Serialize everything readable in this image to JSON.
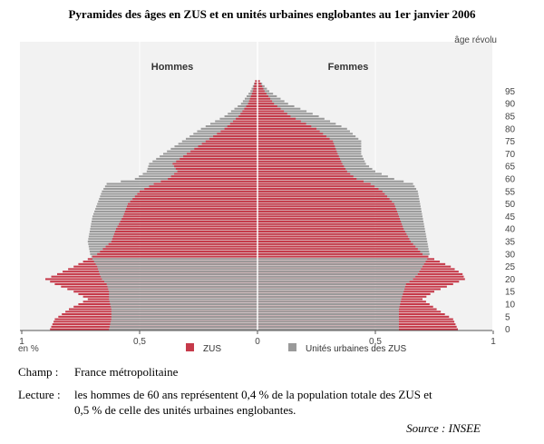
{
  "title": "Pyramides des âges en ZUS et en unités urbaines englobantes au 1er janvier 2006",
  "notes": {
    "champ_label": "Champ :",
    "champ_text": "France métropolitaine",
    "lecture_label": "Lecture :",
    "lecture_line1": "les hommes de 60 ans représentent 0,4 % de la population totale des ZUS et",
    "lecture_line2": "0,5 % de celle des unités urbaines englobantes.",
    "source": "Source : INSEE"
  },
  "colors": {
    "zus": "#c63a4a",
    "uu": "#9a9a9a",
    "background": "#f2f2f2"
  },
  "chart_data": {
    "type": "bar",
    "orientation": "horizontal-pyramid",
    "y_axis_label": "âge révolu",
    "x_unit_label": "en %",
    "left_label": "Hommes",
    "right_label": "Femmes",
    "y_ticks": [
      0,
      5,
      10,
      15,
      20,
      25,
      30,
      35,
      40,
      45,
      50,
      55,
      60,
      65,
      70,
      75,
      80,
      85,
      90,
      95
    ],
    "x_ticks": [
      "1",
      "0,5",
      "0",
      "0,5",
      "1"
    ],
    "xlim": [
      -1,
      1
    ],
    "legend": [
      {
        "name": "ZUS",
        "color": "#c63a4a"
      },
      {
        "name": "Unités urbaines des ZUS",
        "color": "#9a9a9a"
      }
    ],
    "age_keypoints": [
      0,
      4,
      8,
      12,
      15,
      18,
      20,
      22,
      25,
      28,
      30,
      35,
      40,
      45,
      50,
      55,
      58,
      60,
      63,
      66,
      70,
      75,
      80,
      85,
      90,
      95,
      99
    ],
    "series": [
      {
        "name": "ZUS",
        "side": "Hommes",
        "values": [
          0.88,
          0.86,
          0.8,
          0.72,
          0.78,
          0.86,
          0.9,
          0.85,
          0.78,
          0.72,
          0.68,
          0.62,
          0.6,
          0.57,
          0.55,
          0.5,
          0.44,
          0.38,
          0.34,
          0.36,
          0.3,
          0.22,
          0.14,
          0.08,
          0.04,
          0.02,
          0.01
        ]
      },
      {
        "name": "Unités urbaines des ZUS",
        "side": "Hommes",
        "values": [
          0.63,
          0.62,
          0.62,
          0.63,
          0.63,
          0.64,
          0.66,
          0.67,
          0.68,
          0.7,
          0.71,
          0.72,
          0.71,
          0.7,
          0.68,
          0.66,
          0.64,
          0.52,
          0.47,
          0.46,
          0.4,
          0.32,
          0.24,
          0.14,
          0.07,
          0.03,
          0.01
        ]
      },
      {
        "name": "ZUS",
        "side": "Femmes",
        "values": [
          0.85,
          0.83,
          0.76,
          0.7,
          0.75,
          0.83,
          0.88,
          0.87,
          0.82,
          0.75,
          0.7,
          0.65,
          0.62,
          0.6,
          0.58,
          0.53,
          0.48,
          0.42,
          0.38,
          0.36,
          0.34,
          0.32,
          0.25,
          0.14,
          0.07,
          0.03,
          0.01
        ]
      },
      {
        "name": "Unités urbaines des ZUS",
        "side": "Femmes",
        "values": [
          0.6,
          0.6,
          0.6,
          0.61,
          0.62,
          0.63,
          0.66,
          0.68,
          0.7,
          0.72,
          0.73,
          0.72,
          0.71,
          0.7,
          0.69,
          0.68,
          0.66,
          0.58,
          0.5,
          0.46,
          0.44,
          0.44,
          0.38,
          0.26,
          0.13,
          0.05,
          0.01
        ]
      }
    ]
  }
}
